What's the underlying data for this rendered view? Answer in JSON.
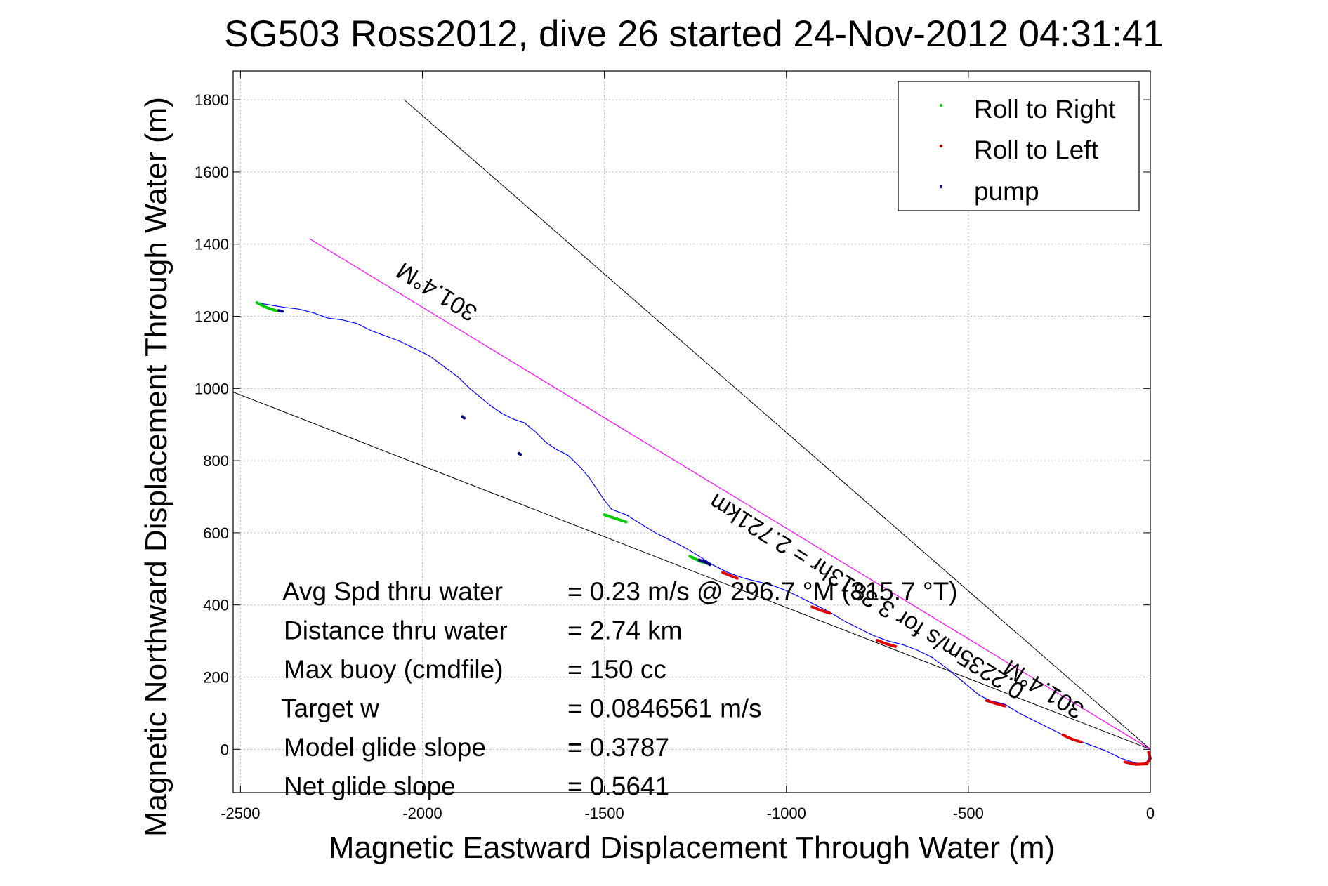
{
  "chart_data": {
    "type": "line",
    "title": "SG503 Ross2012, dive 26 started 24-Nov-2012 04:31:41",
    "xlabel": "Magnetic Eastward Displacement Through Water (m)",
    "ylabel": "Magnetic Northward Displacement Through Water (m)",
    "xlim": [
      -2520,
      0
    ],
    "ylim": [
      -120,
      1880
    ],
    "xticks": [
      -2500,
      -2000,
      -1500,
      -1000,
      -500,
      0
    ],
    "yticks": [
      0,
      200,
      400,
      600,
      800,
      1000,
      1200,
      1400,
      1600,
      1800
    ],
    "xtick_labels": [
      "-2500",
      "-2000",
      "-1500",
      "-1000",
      "-500",
      "0"
    ],
    "ytick_labels": [
      "0",
      "200",
      "400",
      "600",
      "800",
      "1000",
      "1200",
      "1400",
      "1600",
      "1800"
    ],
    "grid": true,
    "legend_position": "top-right",
    "legend": [
      {
        "label": "Roll to Right",
        "color": "#00cc00"
      },
      {
        "label": "Roll to Left",
        "color": "#e00000"
      },
      {
        "label": "pump",
        "color": "#000080"
      }
    ],
    "track": {
      "color": "#0000ff",
      "x": [
        0,
        -5,
        -10,
        -20,
        -40,
        -80,
        -120,
        -160,
        -200,
        -240,
        -280,
        -320,
        -360,
        -400,
        -440,
        -470,
        -500,
        -530,
        -560,
        -600,
        -640,
        -680,
        -720,
        -760,
        -800,
        -840,
        -880,
        -920,
        -960,
        -1000,
        -1040,
        -1080,
        -1120,
        -1160,
        -1200,
        -1240,
        -1280,
        -1320,
        -1360,
        -1400,
        -1440,
        -1480,
        -1500,
        -1520,
        -1540,
        -1560,
        -1580,
        -1600,
        -1630,
        -1660,
        -1690,
        -1720,
        -1750,
        -1780,
        -1810,
        -1840,
        -1870,
        -1900,
        -1940,
        -1980,
        -2020,
        -2060,
        -2100,
        -2140,
        -2180,
        -2220,
        -2260,
        -2300,
        -2340,
        -2380,
        -2410,
        -2440,
        -2455
      ],
      "y": [
        -15,
        -25,
        -35,
        -40,
        -38,
        -25,
        -5,
        10,
        25,
        40,
        60,
        80,
        100,
        125,
        135,
        150,
        175,
        200,
        225,
        255,
        275,
        290,
        300,
        315,
        335,
        355,
        380,
        400,
        420,
        440,
        455,
        465,
        475,
        490,
        510,
        535,
        560,
        580,
        600,
        625,
        650,
        665,
        690,
        720,
        750,
        775,
        795,
        815,
        830,
        850,
        880,
        905,
        915,
        930,
        950,
        975,
        1000,
        1030,
        1060,
        1090,
        1110,
        1130,
        1145,
        1160,
        1180,
        1190,
        1195,
        1210,
        1220,
        1225,
        1230,
        1235,
        1238
      ]
    },
    "markers": {
      "roll_right": [
        {
          "x": [
            -1500,
            -1470,
            -1440
          ],
          "y": [
            650,
            640,
            630
          ]
        },
        {
          "x": [
            -1265,
            -1235,
            -1215
          ],
          "y": [
            535,
            520,
            515
          ]
        },
        {
          "x": [
            -2455,
            -2430,
            -2400
          ],
          "y": [
            1238,
            1225,
            1215
          ]
        }
      ],
      "roll_left": [
        {
          "x": [
            -1175,
            -1155,
            -1135
          ],
          "y": [
            490,
            482,
            474
          ]
        },
        {
          "x": [
            -930,
            -905,
            -880
          ],
          "y": [
            395,
            385,
            377
          ]
        },
        {
          "x": [
            -750,
            -725,
            -700
          ],
          "y": [
            302,
            292,
            285
          ]
        },
        {
          "x": [
            -450,
            -425,
            -400
          ],
          "y": [
            135,
            127,
            120
          ]
        },
        {
          "x": [
            -240,
            -215,
            -190
          ],
          "y": [
            40,
            28,
            20
          ]
        },
        {
          "x": [
            -70,
            -40,
            -10,
            0,
            -5
          ],
          "y": [
            -35,
            -42,
            -40,
            -25,
            -8
          ]
        }
      ],
      "pump": [
        {
          "x": [
            -1240,
            -1225,
            -1210
          ],
          "y": [
            525,
            520,
            512
          ]
        },
        {
          "x": [
            -2395,
            -2385
          ],
          "y": [
            1216,
            1214
          ]
        },
        {
          "x": [
            -1890,
            -1885
          ],
          "y": [
            922,
            918
          ]
        },
        {
          "x": [
            -1735,
            -1730
          ],
          "y": [
            820,
            817
          ]
        }
      ]
    },
    "heading_line": {
      "color": "#ff00ff",
      "x": [
        -2310,
        0
      ],
      "y": [
        1415,
        0
      ]
    },
    "cone_lines": [
      {
        "color": "#000000",
        "x": [
          -2050,
          0
        ],
        "y": [
          1800,
          0
        ]
      },
      {
        "color": "#000000",
        "x": [
          -2520,
          0
        ],
        "y": [
          990,
          0
        ]
      }
    ],
    "annotations": {
      "heading_label_1": "301.4°M",
      "heading_label_2": "301.4°M",
      "distance_label": "0.2235m/s for 3.3813hr = 2.721km"
    },
    "stats": [
      {
        "label": "Avg Spd thru water",
        "value": "=  0.23 m/s @ 296.7 °M (315.7 °T)"
      },
      {
        "label": "Distance thru water",
        "value": "=  2.74 km"
      },
      {
        "label": "Max buoy (cmdfile)",
        "value": "= 150 cc"
      },
      {
        "label": "Target w",
        "value": "= 0.0846561 m/s"
      },
      {
        "label": "Model glide slope",
        "value": "= 0.3787"
      },
      {
        "label": "Net glide slope",
        "value": "= 0.5641"
      }
    ]
  }
}
